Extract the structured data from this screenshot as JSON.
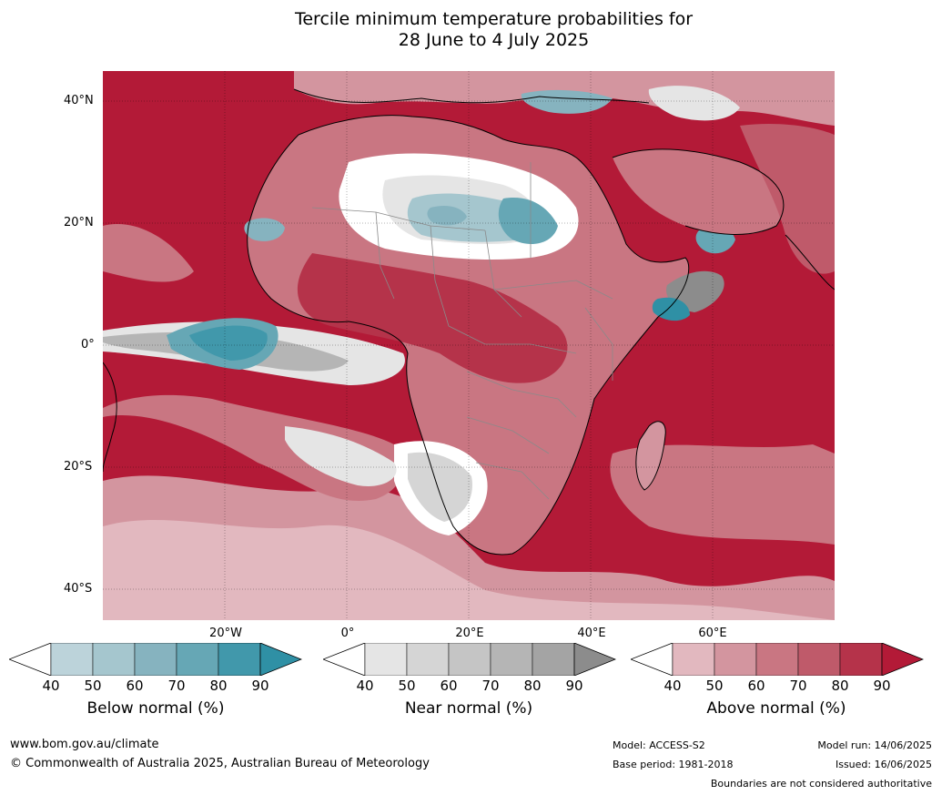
{
  "title_line1": "Tercile minimum temperature probabilities for",
  "title_line2": "28 June to 4 July 2025",
  "lat_labels": [
    "40°N",
    "20°N",
    "0°",
    "20°S",
    "40°S"
  ],
  "lon_labels": [
    "20°W",
    "0°",
    "20°E",
    "40°E",
    "60°E"
  ],
  "colors": {
    "ocean_above": "#b31a37",
    "above": [
      "#ffffff",
      "#e2b8bf",
      "#d3959f",
      "#c97682",
      "#bf5a6a",
      "#b5334a",
      "#b31a37"
    ],
    "below": [
      "#ffffff",
      "#bcd3da",
      "#a5c6ce",
      "#86b3bf",
      "#66a7b5",
      "#4198ab",
      "#2f90a5"
    ],
    "near": [
      "#ffffff",
      "#e5e5e5",
      "#d5d5d5",
      "#c5c5c5",
      "#b5b5b5",
      "#a4a4a4",
      "#8c8c8c"
    ]
  },
  "colorbars": [
    {
      "label": "Below normal (%)",
      "ticks": [
        "40",
        "50",
        "60",
        "70",
        "80",
        "90"
      ]
    },
    {
      "label": "Near normal (%)",
      "ticks": [
        "40",
        "50",
        "60",
        "70",
        "80",
        "90"
      ]
    },
    {
      "label": "Above normal (%)",
      "ticks": [
        "40",
        "50",
        "60",
        "70",
        "80",
        "90"
      ]
    }
  ],
  "footer": {
    "url": "www.bom.gov.au/climate",
    "copyright": "© Commonwealth of Australia 2025, Australian Bureau of Meteorology",
    "model": "Model: ACCESS-S2",
    "base_period": "Base period: 1981-2018",
    "model_run": "Model run: 14/06/2025",
    "issued": "Issued: 16/06/2025",
    "boundaries": "Boundaries are not considered authoritative"
  }
}
